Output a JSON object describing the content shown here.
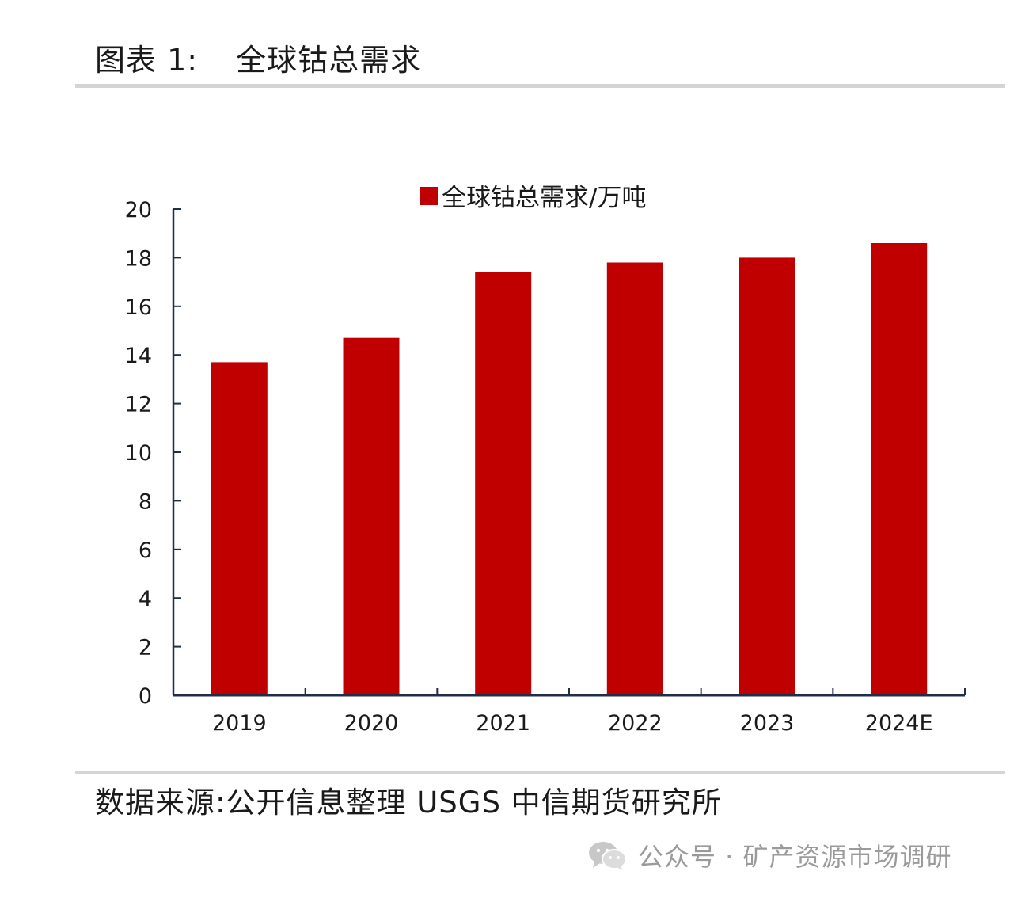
{
  "header": {
    "label": "图表 1:",
    "title": "全球钴总需求"
  },
  "source": {
    "text": "数据来源:公开信息整理 USGS 中信期货研究所"
  },
  "watermark": {
    "text": "公众号 · 矿产资源市场调研",
    "icon": "wechat-icon"
  },
  "colors": {
    "bar": "#C00000",
    "axis": "#1f2f4a",
    "rule": "#d4d4d4"
  },
  "chart_data": {
    "type": "bar",
    "title": "全球钴总需求",
    "categories": [
      "2019",
      "2020",
      "2021",
      "2022",
      "2023",
      "2024E"
    ],
    "series": [
      {
        "name": "全球钴总需求/万吨",
        "values": [
          13.7,
          14.7,
          17.4,
          17.8,
          18.0,
          18.6
        ]
      }
    ],
    "ylim": [
      0,
      20
    ],
    "yticks": [
      0,
      2,
      4,
      6,
      8,
      10,
      12,
      14,
      16,
      18,
      20
    ],
    "xlabel": "",
    "ylabel": "",
    "legend": "top-center",
    "grid": false
  }
}
